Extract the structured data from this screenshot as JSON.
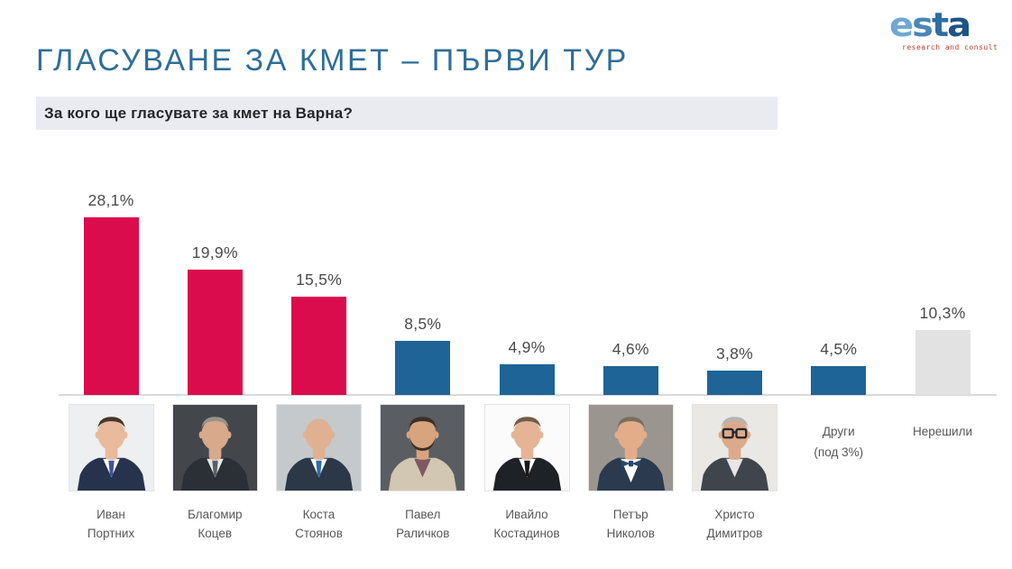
{
  "header": {
    "title": "ГЛАСУВАНЕ ЗА КМЕТ – ПЪРВИ ТУР",
    "title_color": "#2F6E96",
    "question": "За кого ще гласувате за кмет на Варна?",
    "question_band_color": "#E9EBF1"
  },
  "logo": {
    "text": "esta",
    "letters": [
      "e",
      "s",
      "t",
      "a"
    ],
    "letter_colors": [
      "#6FA8D4",
      "#4A86B8",
      "#2E6DA4",
      "#1E5486"
    ],
    "tagline": "research and consult",
    "tagline_color": "#C23B2E"
  },
  "colors": {
    "bar_pink": "#DA0C4D",
    "bar_blue": "#1E6497",
    "bar_gray": "#E2E2E2",
    "axis_line": "#D9D9D9",
    "value_label": "#4B4B4B",
    "name_label": "#585858"
  },
  "chart_data": {
    "type": "bar",
    "title": "За кого ще гласувате за кмет на Варна?",
    "categories": [
      "Иван Портних",
      "Благомир Коцев",
      "Коста Стоянов",
      "Павел Раличков",
      "Ивайло Костадинов",
      "Петър Николов",
      "Христо Димитров",
      "Други (под 3%)",
      "Нерешили"
    ],
    "values": [
      28.1,
      19.9,
      15.5,
      8.5,
      4.9,
      4.6,
      3.8,
      4.5,
      10.3
    ],
    "value_labels": [
      "28,1%",
      "19,9%",
      "15,5%",
      "8,5%",
      "4,9%",
      "4,6%",
      "3,8%",
      "4,5%",
      "10,3%"
    ],
    "bar_colors": [
      "#DA0C4D",
      "#DA0C4D",
      "#DA0C4D",
      "#1E6497",
      "#1E6497",
      "#1E6497",
      "#1E6497",
      "#1E6497",
      "#E2E2E2"
    ],
    "xlabel": "",
    "ylabel": "",
    "ylim": [
      0,
      30
    ],
    "grid": false,
    "legend": false,
    "data_labels_shown": true
  },
  "candidates": [
    {
      "name_lines": [
        "Иван",
        "Портних"
      ],
      "photo": {
        "bg": "#EDEFF1",
        "hair": "#473729",
        "skin": "#E9BA9C",
        "coat": "#27334D",
        "shirt": "#FFFFFF",
        "tie": "#44548F"
      }
    },
    {
      "name_lines": [
        "Благомир",
        "Коцев"
      ],
      "photo": {
        "bg": "#43474C",
        "hair": "#98928A",
        "skin": "#D8A98B",
        "coat": "#2B3036",
        "shirt": "#E8E8E8",
        "tie": "#596068"
      }
    },
    {
      "name_lines": [
        "Коста",
        "Стоянов"
      ],
      "photo": {
        "bg": "#C6C9CC",
        "bald": true,
        "hair": "#8A8074",
        "skin": "#E0B093",
        "coat": "#2C3847",
        "shirt": "#FFFFFF",
        "tie": "#2F6CA8"
      }
    },
    {
      "name_lines": [
        "Павел",
        "Раличков"
      ],
      "photo": {
        "bg": "#5A5E62",
        "hair": "#3A3027",
        "beard": true,
        "skin": "#D8A47E",
        "coat": "#D2C7B2",
        "shirt": "#7E5964",
        "tie": null
      }
    },
    {
      "name_lines": [
        "Ивайло",
        "Костадинов"
      ],
      "photo": {
        "bg": "#FBFBFB",
        "hair": "#705D49",
        "skin": "#E5B497",
        "coat": "#1E2126",
        "shirt": "#FFFFFF",
        "tie": "#17181C"
      }
    },
    {
      "name_lines": [
        "Петър",
        "Николов"
      ],
      "photo": {
        "bg": "#9A958F",
        "hair": "#7A6D5E",
        "skin": "#E2AD88",
        "coat": "#2B3A4E",
        "shirt": "#FFFFFF",
        "bowtie": true,
        "tie": "#274A6D"
      }
    },
    {
      "name_lines": [
        "Христо",
        "Димитров"
      ],
      "photo": {
        "bg": "#E9E8E4",
        "hair": "#B5B4B0",
        "glasses": true,
        "skin": "#DCA98C",
        "coat": "#40454C",
        "shirt": "#E6E6E6",
        "tie": null
      }
    }
  ],
  "tail_labels": [
    {
      "lines": [
        "Други",
        "(под 3%)"
      ]
    },
    {
      "lines": [
        "Нерешили"
      ]
    }
  ]
}
